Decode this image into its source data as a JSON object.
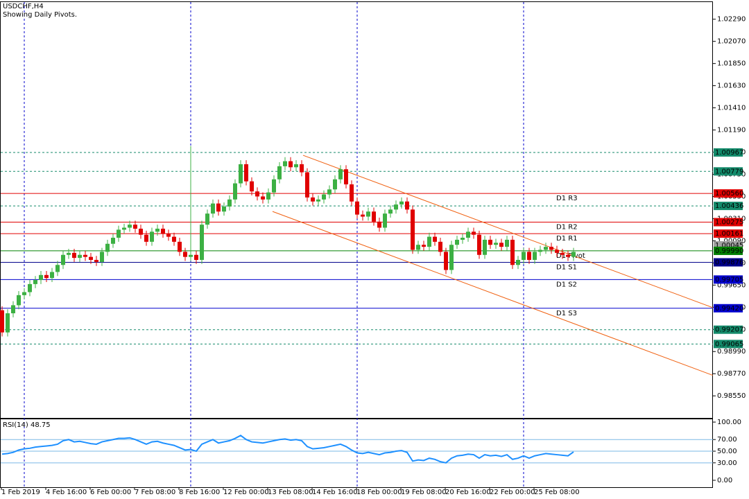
{
  "chart_data": [
    {
      "type": "candlestick",
      "title": "USDCHF,H4",
      "subtitle": "Showing Daily Pivots.",
      "up_color": "#3cb043",
      "down_color": "#e00000",
      "categories": [
        "1 Feb 2019",
        null,
        null,
        null,
        null,
        null,
        null,
        null,
        "4 Feb 16:00",
        null,
        null,
        null,
        null,
        null,
        null,
        null,
        "6 Feb 00:00",
        null,
        null,
        null,
        null,
        null,
        null,
        null,
        "7 Feb 08:00",
        null,
        null,
        null,
        null,
        null,
        null,
        null,
        "8 Feb 16:00",
        null,
        null,
        null,
        null,
        null,
        null,
        null,
        "12 Feb 00:00",
        null,
        null,
        null,
        null,
        null,
        null,
        null,
        "13 Feb 08:00",
        null,
        null,
        null,
        null,
        null,
        null,
        null,
        "14 Feb 16:00",
        null,
        null,
        null,
        null,
        null,
        null,
        null,
        "18 Feb 00:00",
        null,
        null,
        null,
        null,
        null,
        null,
        null,
        "19 Feb 08:00",
        null,
        null,
        null,
        null,
        null,
        null,
        null,
        "20 Feb 16:00",
        null,
        null,
        null,
        null,
        null,
        null,
        null,
        "22 Feb 00:00",
        null,
        null,
        null,
        null,
        null,
        null,
        null,
        "25 Feb 08:00",
        null,
        null,
        null,
        null,
        null,
        null,
        null
      ],
      "open": [
        0.994,
        0.9918,
        0.9937,
        0.9945,
        0.9955,
        0.9958,
        0.9966,
        0.997,
        0.9975,
        0.9972,
        0.9978,
        0.9985,
        0.9995,
        0.9997,
        0.9992,
        0.9995,
        0.9993,
        0.999,
        0.9988,
        0.9998,
        1.0006,
        1.0012,
        1.002,
        1.0022,
        1.0025,
        1.0021,
        1.0015,
        1.0008,
        1.0018,
        1.0021,
        1.0016,
        1.0013,
        1.0008,
        0.9998,
        0.9993,
        0.9995,
        0.999,
        1.0025,
        1.0036,
        1.0046,
        1.0038,
        1.0043,
        1.005,
        1.0066,
        1.0085,
        1.0068,
        1.0058,
        1.0053,
        1.005,
        1.0057,
        1.007,
        1.0083,
        1.0088,
        1.0082,
        1.0085,
        1.0077,
        1.0052,
        1.0048,
        1.005,
        1.0055,
        1.006,
        1.007,
        1.008,
        1.0065,
        1.0048,
        1.0035,
        1.0033,
        1.0038,
        1.0028,
        1.0022,
        1.0036,
        1.004,
        1.0045,
        1.0048,
        1.004,
        1.0,
        1.0005,
        1.0003,
        1.0013,
        1.0008,
        0.9998,
        0.998,
        1.0005,
        1.001,
        1.0012,
        1.0018,
        1.0015,
        0.9995,
        1.001,
        1.0005,
        1.0007,
        1.0003,
        1.001,
        0.9985,
        0.999,
        0.9998,
        0.999,
        0.9998,
        1.0,
        1.0003,
        1.0,
        0.9997,
        0.9995,
        0.9993
      ],
      "high": [
        0.9944,
        0.9941,
        0.9949,
        0.9959,
        0.9962,
        0.997,
        0.9974,
        0.9979,
        0.9979,
        0.9982,
        0.9989,
        0.9999,
        1.0001,
        1.0001,
        0.9999,
        0.9999,
        0.9997,
        0.9994,
        1.0002,
        1.001,
        1.0016,
        1.0024,
        1.0026,
        1.0029,
        1.0029,
        1.0025,
        1.0019,
        1.0022,
        1.0025,
        1.0025,
        1.002,
        1.0017,
        1.0012,
        1.0002,
        1.0103,
        0.9999,
        1.0029,
        1.004,
        1.005,
        1.005,
        1.0047,
        1.0054,
        1.007,
        1.0089,
        1.0089,
        1.0072,
        1.0062,
        1.0057,
        1.0061,
        1.0074,
        1.0087,
        1.0092,
        1.0092,
        1.0089,
        1.0089,
        1.0081,
        1.0056,
        1.0054,
        1.0059,
        1.0064,
        1.0074,
        1.0084,
        1.0084,
        1.0069,
        1.0052,
        1.0039,
        1.0042,
        1.0042,
        1.0032,
        1.004,
        1.0044,
        1.0049,
        1.0052,
        1.0052,
        1.0044,
        1.0009,
        1.0009,
        1.0017,
        1.0017,
        1.0012,
        1.0002,
        1.0009,
        1.0014,
        1.0016,
        1.0022,
        1.0022,
        1.0019,
        1.0014,
        1.0014,
        1.0011,
        1.0011,
        1.0014,
        1.0014,
        0.9994,
        1.0002,
        1.0002,
        1.0002,
        1.0004,
        1.0007,
        1.0007,
        1.0004,
        1.0001,
        0.9999,
        1.0002
      ],
      "low": [
        0.9914,
        0.9914,
        0.9933,
        0.9941,
        0.9951,
        0.9954,
        0.9962,
        0.9966,
        0.9968,
        0.9968,
        0.9974,
        0.9981,
        0.9991,
        0.9988,
        0.9988,
        0.9989,
        0.9986,
        0.9984,
        0.9984,
        0.9994,
        1.0002,
        1.0008,
        1.0016,
        1.0018,
        1.0017,
        1.0011,
        1.0004,
        1.0004,
        1.0014,
        1.0012,
        1.0009,
        1.0004,
        0.9994,
        0.9989,
        0.9989,
        0.9986,
        0.9986,
        1.0021,
        1.0032,
        1.0034,
        1.0034,
        1.0039,
        1.0046,
        1.0062,
        1.0064,
        1.0054,
        1.0049,
        1.0046,
        1.0046,
        1.0053,
        1.0066,
        1.0079,
        1.0078,
        1.0078,
        1.0073,
        1.0048,
        1.0044,
        1.0044,
        1.0046,
        1.0051,
        1.0056,
        1.0066,
        1.0061,
        1.0044,
        1.0031,
        1.0029,
        1.0029,
        1.0024,
        1.0018,
        1.0018,
        1.0032,
        1.0036,
        1.0041,
        1.0036,
        0.9996,
        0.9996,
        0.9999,
        0.9999,
        1.0004,
        0.9994,
        0.9976,
        0.9976,
        1.0001,
        1.0006,
        1.0008,
        1.0011,
        0.9991,
        0.9991,
        1.0001,
        1.0001,
        0.9999,
        0.9999,
        0.9981,
        0.9981,
        0.9986,
        0.9986,
        0.9986,
        0.9994,
        0.9996,
        0.9996,
        0.9993,
        0.9991,
        0.9989,
        0.9989
      ],
      "close": [
        0.9918,
        0.9937,
        0.9945,
        0.9955,
        0.9958,
        0.9966,
        0.997,
        0.9975,
        0.9972,
        0.9978,
        0.9985,
        0.9995,
        0.9997,
        0.9992,
        0.9995,
        0.9993,
        0.999,
        0.9988,
        0.9998,
        1.0006,
        1.0012,
        1.002,
        1.0022,
        1.0025,
        1.0021,
        1.0015,
        1.0008,
        1.0018,
        1.0021,
        1.0016,
        1.0013,
        1.0008,
        0.9998,
        0.9993,
        0.9995,
        0.999,
        1.0025,
        1.0036,
        1.0046,
        1.0038,
        1.0043,
        1.005,
        1.0066,
        1.0085,
        1.0068,
        1.0058,
        1.0053,
        1.005,
        1.0057,
        1.007,
        1.0083,
        1.0088,
        1.0082,
        1.0085,
        1.0077,
        1.0052,
        1.0048,
        1.005,
        1.0055,
        1.006,
        1.007,
        1.008,
        1.0065,
        1.0048,
        1.0035,
        1.0033,
        1.0038,
        1.0028,
        1.0022,
        1.0036,
        1.004,
        1.0045,
        1.0048,
        1.004,
        1.0,
        1.0005,
        1.0003,
        1.0013,
        1.0008,
        0.9998,
        0.998,
        1.0005,
        1.001,
        1.0012,
        1.0018,
        1.0015,
        0.9995,
        1.001,
        1.0005,
        1.0007,
        1.0003,
        1.001,
        0.9985,
        0.999,
        0.9998,
        0.999,
        0.9998,
        1.0,
        1.0003,
        1.0,
        0.9997,
        0.9995,
        0.9993,
        0.9998
      ],
      "ylim": [
        0.98331,
        1.02467
      ],
      "yticks": [
        {
          "value": 1.0229,
          "label": "1.02290"
        },
        {
          "value": 1.0207,
          "label": "1.02070"
        },
        {
          "value": 1.0185,
          "label": "1.01850"
        },
        {
          "value": 1.0163,
          "label": "1.01630"
        },
        {
          "value": 1.0141,
          "label": "1.01410"
        },
        {
          "value": 1.0119,
          "label": "1.01190"
        },
        {
          "value": 1.0097,
          "label": "1.00970"
        },
        {
          "value": 1.0075,
          "label": "1.00750"
        },
        {
          "value": 1.0053,
          "label": "1.00530"
        },
        {
          "value": 1.0031,
          "label": "1.00310"
        },
        {
          "value": 1.0009,
          "label": "1.00090"
        },
        {
          "value": 0.9987,
          "label": "0.99870"
        },
        {
          "value": 0.9965,
          "label": "0.99650"
        },
        {
          "value": 0.9943,
          "label": "0.99430"
        },
        {
          "value": 0.9921,
          "label": "0.99210"
        },
        {
          "value": 0.9899,
          "label": "0.98990"
        },
        {
          "value": 0.9877,
          "label": "0.98770"
        },
        {
          "value": 0.9855,
          "label": "0.98550"
        }
      ],
      "xgrid": [
        4,
        34,
        64,
        94
      ],
      "levels": [
        {
          "value": 1.00967,
          "label": "1.00967",
          "color": "#138a6a",
          "style": "dashed"
        },
        {
          "value": 1.00779,
          "label": "1.00779",
          "color": "#138a6a",
          "style": "dashed"
        },
        {
          "value": 1.0056,
          "label": "1.00560",
          "name": "D1 R3",
          "color": "#e00000",
          "style": "solid"
        },
        {
          "value": 1.00436,
          "label": "1.00436",
          "color": "#138a6a",
          "style": "dashed"
        },
        {
          "value": 1.00275,
          "label": "1.00275",
          "name": "D1 R2",
          "color": "#e00000",
          "style": "solid"
        },
        {
          "value": 1.00161,
          "label": "1.00161",
          "name": "D1 R1",
          "color": "#e00000",
          "style": "solid"
        },
        {
          "value": 1.00045,
          "label": "1.00045",
          "color": "#a0a0a0",
          "style": "none"
        },
        {
          "value": 0.9999,
          "label": "0.99990",
          "name": "D1 Pivot",
          "color": "#008000",
          "style": "solid"
        },
        {
          "value": 0.99876,
          "label": "0.99876",
          "name": "D1 S1",
          "color": "#00008b",
          "style": "solid"
        },
        {
          "value": 0.99705,
          "label": "0.99705",
          "name": "D1 S2",
          "color": "#0000cd",
          "style": "solid"
        },
        {
          "value": 0.9942,
          "label": "0.99420",
          "name": "D1 S3",
          "color": "#0000cd",
          "style": "solid"
        },
        {
          "value": 0.99207,
          "label": "0.99207",
          "color": "#138a6a",
          "style": "dashed"
        },
        {
          "value": 0.99065,
          "label": "0.99065",
          "color": "#138a6a",
          "style": "dashed"
        }
      ],
      "trendlines": [
        {
          "x": [
            54.25,
            128.1
          ],
          "y": [
            1.00939,
            0.99426
          ],
          "color": "#f06010"
        },
        {
          "x": [
            48.75,
            128.1
          ],
          "y": [
            1.00381,
            0.98754
          ],
          "color": "#f06010"
        }
      ]
    },
    {
      "type": "line",
      "title": "RSI(14) 48.75",
      "color": "#1e90ff",
      "values": [
        45,
        46,
        48,
        52,
        54,
        55,
        57,
        58,
        59,
        60,
        62,
        68,
        70,
        66,
        67,
        65,
        63,
        62,
        66,
        68,
        70,
        72,
        72,
        73,
        70,
        66,
        62,
        66,
        67,
        64,
        62,
        60,
        56,
        52,
        53,
        50,
        62,
        66,
        70,
        64,
        66,
        68,
        72,
        77,
        70,
        66,
        65,
        64,
        66,
        68,
        70,
        71,
        69,
        70,
        68,
        58,
        54,
        55,
        56,
        58,
        60,
        62,
        58,
        52,
        47,
        46,
        48,
        46,
        44,
        47,
        48,
        50,
        51,
        48,
        33,
        35,
        34,
        38,
        36,
        32,
        30,
        38,
        42,
        43,
        45,
        44,
        38,
        44,
        42,
        43,
        41,
        44,
        36,
        38,
        42,
        38,
        42,
        44,
        46,
        45,
        44,
        43,
        42,
        48.75
      ],
      "ylim": [
        -11.9,
        104.8
      ],
      "yticks": [
        {
          "value": 100,
          "label": "100.00"
        },
        {
          "value": 70,
          "label": "70.00"
        },
        {
          "value": 50,
          "label": "50.00"
        },
        {
          "value": 30,
          "label": "30.00"
        },
        {
          "value": 0,
          "label": "0.00"
        }
      ],
      "hlines": [
        70,
        50,
        30
      ],
      "hline_color": "#7ab8e6"
    }
  ]
}
